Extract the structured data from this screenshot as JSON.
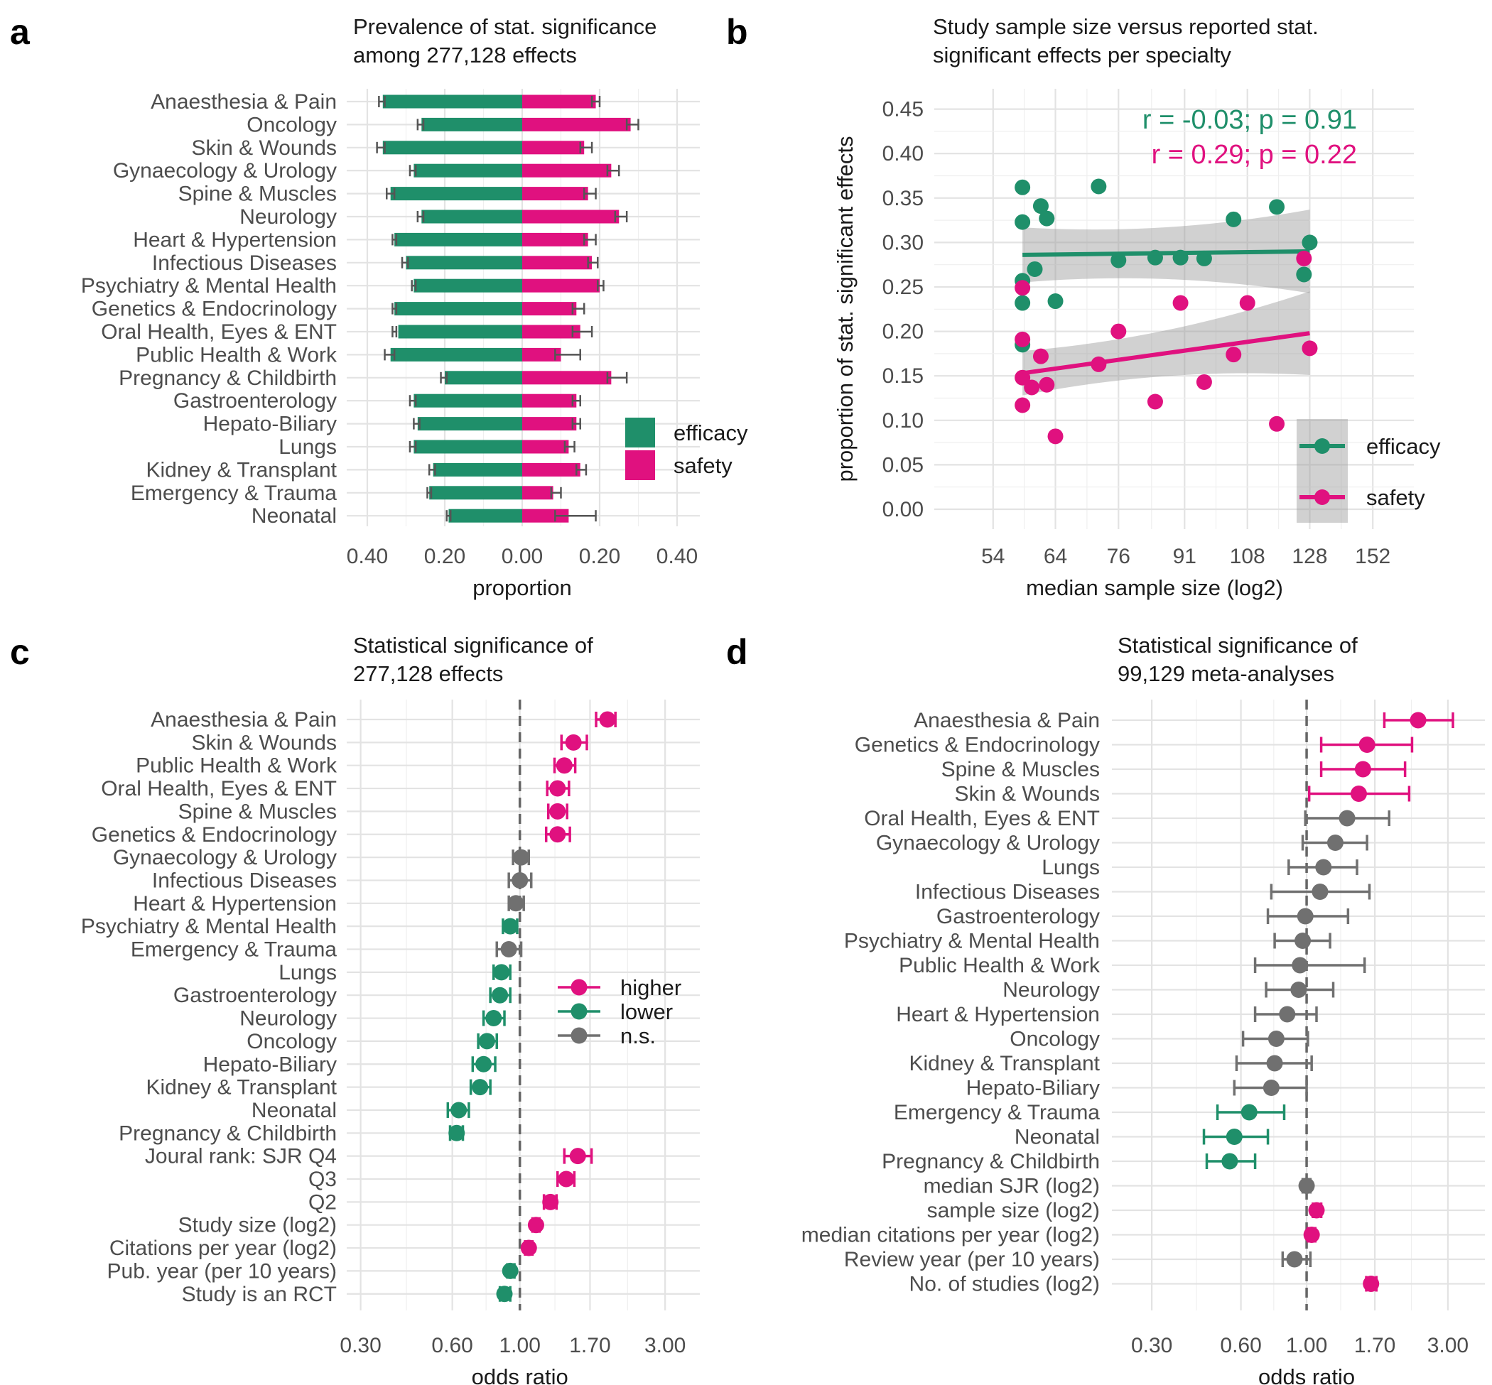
{
  "colors": {
    "efficacy": "#1f8f6a",
    "safety": "#e0117f",
    "ns": "#707070",
    "grid": "#e3e3e3",
    "band": "#9a9a9a"
  },
  "panels": {
    "a": {
      "label": "a",
      "title_line1": "Prevalence of stat. significance",
      "title_line2": "among 277,128 effects"
    },
    "b": {
      "label": "b",
      "title_line1": "Study sample size versus reported stat.",
      "title_line2": "significant effects per specialty",
      "annotation_efficacy": "r = -0.03; p = 0.91",
      "annotation_safety": "r = 0.29; p = 0.22"
    },
    "c": {
      "label": "c",
      "title_line1": "Statistical significance of",
      "title_line2": "277,128 effects"
    },
    "d": {
      "label": "d",
      "title_line1": "Statistical significance of",
      "title_line2": "99,129 meta-analyses"
    }
  },
  "chart_data": [
    {
      "panel": "a",
      "type": "bar",
      "orientation": "horizontal diverging",
      "xlabel": "proportion",
      "xticks": [
        "0.40",
        "0.20",
        "0.00",
        "0.20",
        "0.40"
      ],
      "xlim": [
        -0.45,
        0.45
      ],
      "legend": [
        "efficacy",
        "safety"
      ],
      "legend_position": "right",
      "categories": [
        "Anaesthesia & Pain",
        "Oncology",
        "Skin & Wounds",
        "Gynaecology & Urology",
        "Spine & Muscles",
        "Neurology",
        "Heart & Hypertension",
        "Infectious Diseases",
        "Psychiatry & Mental Health",
        "Genetics & Endocrinology",
        "Oral Health, Eyes & ENT",
        "Public Health & Work",
        "Pregnancy & Childbirth",
        "Gastroenterology",
        "Hepato-Biliary",
        "Lungs",
        "Kidney & Transplant",
        "Emergency & Trauma",
        "Neonatal"
      ],
      "series": [
        {
          "name": "efficacy",
          "values": [
            0.36,
            0.26,
            0.36,
            0.28,
            0.34,
            0.26,
            0.33,
            0.3,
            0.28,
            0.33,
            0.32,
            0.34,
            0.2,
            0.28,
            0.27,
            0.28,
            0.23,
            0.24,
            0.19
          ],
          "err_lo": [
            0.37,
            0.27,
            0.375,
            0.29,
            0.35,
            0.27,
            0.335,
            0.31,
            0.285,
            0.335,
            0.335,
            0.355,
            0.21,
            0.29,
            0.28,
            0.29,
            0.24,
            0.245,
            0.195
          ],
          "err_hi": [
            0.355,
            0.255,
            0.355,
            0.275,
            0.33,
            0.255,
            0.325,
            0.295,
            0.275,
            0.325,
            0.325,
            0.33,
            0.195,
            0.275,
            0.265,
            0.275,
            0.225,
            0.235,
            0.185
          ]
        },
        {
          "name": "safety",
          "values": [
            0.19,
            0.28,
            0.16,
            0.23,
            0.17,
            0.25,
            0.17,
            0.18,
            0.2,
            0.14,
            0.15,
            0.1,
            0.23,
            0.14,
            0.14,
            0.12,
            0.15,
            0.08,
            0.12
          ],
          "err_lo": [
            0.18,
            0.27,
            0.15,
            0.22,
            0.16,
            0.24,
            0.16,
            0.17,
            0.195,
            0.13,
            0.13,
            0.085,
            0.22,
            0.13,
            0.13,
            0.11,
            0.14,
            0.075,
            0.085
          ],
          "err_hi": [
            0.2,
            0.3,
            0.18,
            0.25,
            0.19,
            0.27,
            0.19,
            0.195,
            0.21,
            0.16,
            0.18,
            0.15,
            0.27,
            0.15,
            0.15,
            0.135,
            0.165,
            0.1,
            0.19
          ]
        }
      ]
    },
    {
      "panel": "b",
      "type": "scatter",
      "xlabel": "median sample size (log2)",
      "ylabel": "proportion of stat. significant effects",
      "x_scale": "log2",
      "xticks": [
        54,
        64,
        76,
        91,
        108,
        128,
        152
      ],
      "yticks": [
        "0.00",
        "0.05",
        "0.10",
        "0.15",
        "0.20",
        "0.25",
        "0.30",
        "0.35",
        "0.40",
        "0.45"
      ],
      "ylim": [
        0,
        0.45
      ],
      "xlim": [
        46,
        170
      ],
      "legend": [
        "efficacy",
        "safety"
      ],
      "legend_position": "bottom-right",
      "series": [
        {
          "name": "efficacy",
          "x": [
            58.5,
            58.5,
            58.5,
            58.5,
            58.5,
            60.5,
            61.5,
            62.5,
            64,
            72,
            76,
            84,
            90,
            96,
            104,
            117,
            126,
            128
          ],
          "y": [
            0.362,
            0.323,
            0.257,
            0.232,
            0.185,
            0.27,
            0.341,
            0.327,
            0.234,
            0.363,
            0.28,
            0.283,
            0.283,
            0.282,
            0.326,
            0.34,
            0.264,
            0.3
          ],
          "fit": {
            "x": [
              58.5,
              128
            ],
            "y": [
              0.286,
              0.29
            ],
            "ci_lo": [
              0.256,
              0.246
            ],
            "ci_hi": [
              0.318,
              0.34
            ]
          }
        },
        {
          "name": "safety",
          "x": [
            58.5,
            58.5,
            58.5,
            58.5,
            60,
            61.5,
            62.5,
            64,
            72,
            76,
            84,
            90,
            96,
            104,
            108,
            117,
            126,
            128
          ],
          "y": [
            0.249,
            0.191,
            0.148,
            0.117,
            0.137,
            0.172,
            0.14,
            0.082,
            0.163,
            0.2,
            0.121,
            0.232,
            0.143,
            0.174,
            0.232,
            0.096,
            0.282,
            0.181
          ],
          "fit": {
            "x": [
              58.5,
              128
            ],
            "y": [
              0.153,
              0.198
            ],
            "ci_lo": [
              0.128,
              0.153
            ],
            "ci_hi": [
              0.178,
              0.247
            ]
          }
        }
      ]
    },
    {
      "panel": "c",
      "type": "scatter",
      "subtype": "forest",
      "xlabel": "odds ratio",
      "x_scale": "log",
      "xticks": [
        "0.30",
        "0.60",
        "1.00",
        "1.70",
        "3.00"
      ],
      "xlim": [
        0.27,
        3.9
      ],
      "reference_line": 1.0,
      "legend": [
        "higher",
        "lower",
        "n.s."
      ],
      "legend_position": "right",
      "rows": [
        {
          "label": "Anaesthesia & Pain",
          "or": 1.94,
          "lo": 1.78,
          "hi": 2.06,
          "sig": "higher"
        },
        {
          "label": "Skin & Wounds",
          "or": 1.5,
          "lo": 1.37,
          "hi": 1.66,
          "sig": "higher"
        },
        {
          "label": "Public Health & Work",
          "or": 1.4,
          "lo": 1.3,
          "hi": 1.52,
          "sig": "higher"
        },
        {
          "label": "Oral Health, Eyes & ENT",
          "or": 1.33,
          "lo": 1.23,
          "hi": 1.45,
          "sig": "higher"
        },
        {
          "label": "Spine & Muscles",
          "or": 1.33,
          "lo": 1.24,
          "hi": 1.43,
          "sig": "higher"
        },
        {
          "label": "Genetics & Endocrinology",
          "or": 1.33,
          "lo": 1.22,
          "hi": 1.46,
          "sig": "higher"
        },
        {
          "label": "Gynaecology & Urology",
          "or": 1.01,
          "lo": 0.95,
          "hi": 1.07,
          "sig": "n.s."
        },
        {
          "label": "Infectious Diseases",
          "or": 1.0,
          "lo": 0.92,
          "hi": 1.09,
          "sig": "n.s."
        },
        {
          "label": "Heart & Hypertension",
          "or": 0.97,
          "lo": 0.92,
          "hi": 1.03,
          "sig": "n.s."
        },
        {
          "label": "Psychiatry & Mental Health",
          "or": 0.93,
          "lo": 0.88,
          "hi": 0.98,
          "sig": "lower"
        },
        {
          "label": "Emergency & Trauma",
          "or": 0.92,
          "lo": 0.84,
          "hi": 1.01,
          "sig": "n.s."
        },
        {
          "label": "Lungs",
          "or": 0.87,
          "lo": 0.82,
          "hi": 0.93,
          "sig": "lower"
        },
        {
          "label": "Gastroenterology",
          "or": 0.86,
          "lo": 0.8,
          "hi": 0.93,
          "sig": "lower"
        },
        {
          "label": "Neurology",
          "or": 0.82,
          "lo": 0.76,
          "hi": 0.89,
          "sig": "lower"
        },
        {
          "label": "Oncology",
          "or": 0.78,
          "lo": 0.73,
          "hi": 0.84,
          "sig": "lower"
        },
        {
          "label": "Hepato-Biliary",
          "or": 0.76,
          "lo": 0.7,
          "hi": 0.83,
          "sig": "lower"
        },
        {
          "label": "Kidney & Transplant",
          "or": 0.74,
          "lo": 0.69,
          "hi": 0.8,
          "sig": "lower"
        },
        {
          "label": "Neonatal",
          "or": 0.63,
          "lo": 0.58,
          "hi": 0.68,
          "sig": "lower"
        },
        {
          "label": "Pregnancy & Childbirth",
          "or": 0.62,
          "lo": 0.59,
          "hi": 0.65,
          "sig": "lower"
        },
        {
          "label": "Joural rank: SJR Q4",
          "or": 1.55,
          "lo": 1.4,
          "hi": 1.72,
          "sig": "higher"
        },
        {
          "label": "Q3",
          "or": 1.42,
          "lo": 1.33,
          "hi": 1.51,
          "sig": "higher"
        },
        {
          "label": "Q2",
          "or": 1.26,
          "lo": 1.2,
          "hi": 1.32,
          "sig": "higher"
        },
        {
          "label": "Study size (log2)",
          "or": 1.13,
          "lo": 1.1,
          "hi": 1.16,
          "sig": "higher"
        },
        {
          "label": "Citations per year (log2)",
          "or": 1.07,
          "lo": 1.04,
          "hi": 1.1,
          "sig": "higher"
        },
        {
          "label": "Pub. year (per 10 years)",
          "or": 0.93,
          "lo": 0.91,
          "hi": 0.96,
          "sig": "lower"
        },
        {
          "label": "Study is an RCT",
          "or": 0.89,
          "lo": 0.86,
          "hi": 0.93,
          "sig": "lower"
        }
      ]
    },
    {
      "panel": "d",
      "type": "scatter",
      "subtype": "forest",
      "xlabel": "odds ratio",
      "x_scale": "log",
      "xticks": [
        "0.30",
        "0.60",
        "1.00",
        "1.70",
        "3.00"
      ],
      "xlim": [
        0.22,
        4.0
      ],
      "reference_line": 1.0,
      "rows": [
        {
          "label": "Anaesthesia & Pain",
          "or": 2.38,
          "lo": 1.83,
          "hi": 3.12,
          "sig": "higher"
        },
        {
          "label": "Genetics & Endocrinology",
          "or": 1.6,
          "lo": 1.12,
          "hi": 2.27,
          "sig": "higher"
        },
        {
          "label": "Spine & Muscles",
          "or": 1.55,
          "lo": 1.12,
          "hi": 2.15,
          "sig": "higher"
        },
        {
          "label": "Skin & Wounds",
          "or": 1.5,
          "lo": 1.02,
          "hi": 2.22,
          "sig": "higher"
        },
        {
          "label": "Oral Health, Eyes & ENT",
          "or": 1.37,
          "lo": 0.99,
          "hi": 1.9,
          "sig": "n.s."
        },
        {
          "label": "Gynaecology & Urology",
          "or": 1.25,
          "lo": 0.97,
          "hi": 1.6,
          "sig": "n.s."
        },
        {
          "label": "Lungs",
          "or": 1.14,
          "lo": 0.87,
          "hi": 1.48,
          "sig": "n.s."
        },
        {
          "label": "Infectious Diseases",
          "or": 1.11,
          "lo": 0.76,
          "hi": 1.63,
          "sig": "n.s."
        },
        {
          "label": "Gastroenterology",
          "or": 0.99,
          "lo": 0.74,
          "hi": 1.38,
          "sig": "n.s."
        },
        {
          "label": "Psychiatry & Mental Health",
          "or": 0.97,
          "lo": 0.78,
          "hi": 1.2,
          "sig": "n.s."
        },
        {
          "label": "Public Health & Work",
          "or": 0.95,
          "lo": 0.67,
          "hi": 1.57,
          "sig": "n.s."
        },
        {
          "label": "Neurology",
          "or": 0.94,
          "lo": 0.73,
          "hi": 1.23,
          "sig": "n.s."
        },
        {
          "label": "Heart & Hypertension",
          "or": 0.86,
          "lo": 0.67,
          "hi": 1.08,
          "sig": "n.s."
        },
        {
          "label": "Oncology",
          "or": 0.79,
          "lo": 0.61,
          "hi": 1.01,
          "sig": "n.s."
        },
        {
          "label": "Kidney & Transplant",
          "or": 0.78,
          "lo": 0.58,
          "hi": 1.04,
          "sig": "n.s."
        },
        {
          "label": "Hepato-Biliary",
          "or": 0.76,
          "lo": 0.57,
          "hi": 1.0,
          "sig": "n.s."
        },
        {
          "label": "Emergency & Trauma",
          "or": 0.64,
          "lo": 0.5,
          "hi": 0.84,
          "sig": "lower"
        },
        {
          "label": "Neonatal",
          "or": 0.57,
          "lo": 0.45,
          "hi": 0.74,
          "sig": "lower"
        },
        {
          "label": "Pregnancy & Childbirth",
          "or": 0.55,
          "lo": 0.46,
          "hi": 0.67,
          "sig": "lower"
        },
        {
          "label": "median SJR (log2)",
          "or": 1.0,
          "lo": 0.97,
          "hi": 1.03,
          "sig": "n.s."
        },
        {
          "label": "sample size (log2)",
          "or": 1.08,
          "lo": 1.05,
          "hi": 1.12,
          "sig": "higher"
        },
        {
          "label": "median citations per year (log2)",
          "or": 1.04,
          "lo": 1.01,
          "hi": 1.07,
          "sig": "higher"
        },
        {
          "label": "Review year (per 10 years)",
          "or": 0.91,
          "lo": 0.83,
          "hi": 1.03,
          "sig": "n.s."
        },
        {
          "label": "No. of studies (log2)",
          "or": 1.65,
          "lo": 1.59,
          "hi": 1.72,
          "sig": "higher"
        }
      ]
    }
  ]
}
